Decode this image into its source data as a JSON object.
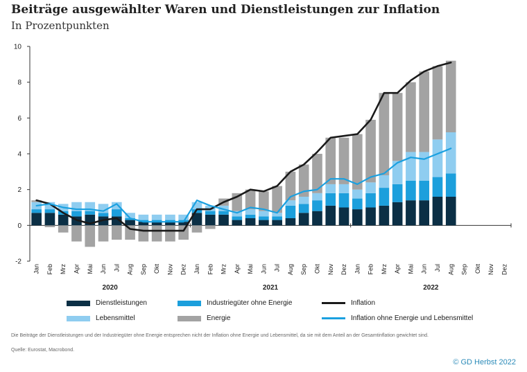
{
  "title": "Beiträge ausgewählter Waren und Dienstleistungen zur Inflation",
  "subtitle": "In Prozentpunkten",
  "footnote": "Die Beiträge der Dienstleistungen und der Industriegüter ohne Energie entsprechen nicht der Inflation ohne Energie und Lebensmittel, da sie mit dem Anteil an der Gesamtinflation gewichtet sind.",
  "source": "Quelle: Eurostat, Macrobond.",
  "credit": "© GD Herbst 2022",
  "colors": {
    "dienstleistungen": "#0b2f45",
    "industriegueter": "#1c9fdc",
    "lebensmittel": "#8fcdf0",
    "energie": "#a3a3a3",
    "inflation": "#1a1a1a",
    "kerninflation": "#1aa0e0"
  },
  "chart_data": {
    "type": "bar",
    "stacked": true,
    "ylim": [
      -2,
      10
    ],
    "yticks": [
      -2,
      0,
      2,
      4,
      6,
      8,
      10
    ],
    "grid": false,
    "legend_position": "bottom",
    "months": [
      "Jan",
      "Feb",
      "Mrz",
      "Apr",
      "Mai",
      "Jun",
      "Jul",
      "Aug",
      "Sep",
      "Okt",
      "Nov",
      "Dez",
      "Jan",
      "Feb",
      "Mrz",
      "Apr",
      "Mai",
      "Jun",
      "Jul",
      "Aug",
      "Sep",
      "Okt",
      "Nov",
      "Dez",
      "Jan",
      "Feb",
      "Mrz",
      "Apr",
      "Mai",
      "Jun",
      "Jul",
      "Aug",
      "Sep",
      "Okt",
      "Nov",
      "Dez"
    ],
    "years": [
      "2020",
      "2021",
      "2022"
    ],
    "series": [
      {
        "name": "Dienstleistungen",
        "key": "dienstleistungen",
        "kind": "bar",
        "values": [
          0.7,
          0.7,
          0.6,
          0.5,
          0.6,
          0.5,
          0.5,
          0.3,
          0.2,
          0.2,
          0.2,
          0.2,
          0.7,
          0.6,
          0.6,
          0.3,
          0.4,
          0.3,
          0.3,
          0.4,
          0.7,
          0.8,
          1.1,
          1.0,
          0.9,
          1.0,
          1.1,
          1.3,
          1.4,
          1.4,
          1.6,
          1.6,
          null,
          null,
          null,
          null
        ]
      },
      {
        "name": "Industriegüter ohne Energie",
        "key": "industriegueter",
        "kind": "bar",
        "values": [
          0.2,
          0.2,
          0.2,
          0.3,
          0.2,
          0.2,
          0.4,
          0.1,
          0.1,
          0.1,
          0.1,
          0.1,
          0.2,
          0.2,
          0.2,
          0.2,
          0.2,
          0.2,
          0.2,
          0.7,
          0.5,
          0.6,
          0.7,
          0.8,
          0.6,
          0.8,
          1.0,
          1.0,
          1.1,
          1.1,
          1.1,
          1.3,
          null,
          null,
          null,
          null
        ]
      },
      {
        "name": "Lebensmittel",
        "key": "lebensmittel",
        "kind": "bar",
        "values": [
          0.4,
          0.4,
          0.4,
          0.5,
          0.5,
          0.5,
          0.4,
          0.3,
          0.3,
          0.3,
          0.3,
          0.3,
          0.4,
          0.3,
          0.3,
          0.3,
          0.3,
          0.3,
          0.2,
          0.3,
          0.4,
          0.4,
          0.5,
          0.5,
          0.5,
          0.6,
          0.7,
          1.3,
          1.6,
          1.6,
          2.1,
          2.3,
          null,
          null,
          null,
          null
        ]
      },
      {
        "name": "Energie",
        "key": "energie",
        "kind": "bar",
        "values": [
          0.1,
          -0.1,
          -0.4,
          -0.9,
          -1.2,
          -0.9,
          -0.8,
          -0.8,
          -0.9,
          -0.9,
          -0.9,
          -0.8,
          -0.4,
          -0.2,
          0.4,
          1.0,
          1.1,
          1.1,
          1.5,
          1.6,
          1.8,
          2.2,
          2.6,
          2.6,
          3.1,
          3.5,
          4.6,
          3.8,
          3.9,
          4.5,
          4.1,
          4.0,
          null,
          null,
          null,
          null
        ]
      },
      {
        "name": "Inflation",
        "key": "inflation",
        "kind": "line",
        "values": [
          1.4,
          1.2,
          0.7,
          0.3,
          0.1,
          0.3,
          0.4,
          -0.2,
          -0.3,
          -0.3,
          -0.3,
          -0.3,
          0.9,
          0.9,
          1.3,
          1.6,
          2.0,
          1.9,
          2.2,
          3.0,
          3.4,
          4.1,
          4.9,
          5.0,
          5.1,
          5.9,
          7.4,
          7.4,
          8.1,
          8.6,
          8.9,
          9.1,
          null,
          null,
          null,
          null
        ]
      },
      {
        "name": "Inflation ohne Energie und Lebensmittel",
        "key": "kerninflation",
        "kind": "line",
        "values": [
          1.1,
          1.2,
          1.0,
          0.9,
          0.9,
          0.8,
          1.2,
          0.4,
          0.2,
          0.2,
          0.2,
          0.2,
          1.4,
          1.1,
          0.9,
          0.7,
          1.0,
          0.9,
          0.7,
          1.6,
          1.9,
          2.0,
          2.6,
          2.6,
          2.3,
          2.7,
          2.9,
          3.5,
          3.8,
          3.7,
          4.0,
          4.3,
          null,
          null,
          null,
          null
        ]
      }
    ]
  }
}
